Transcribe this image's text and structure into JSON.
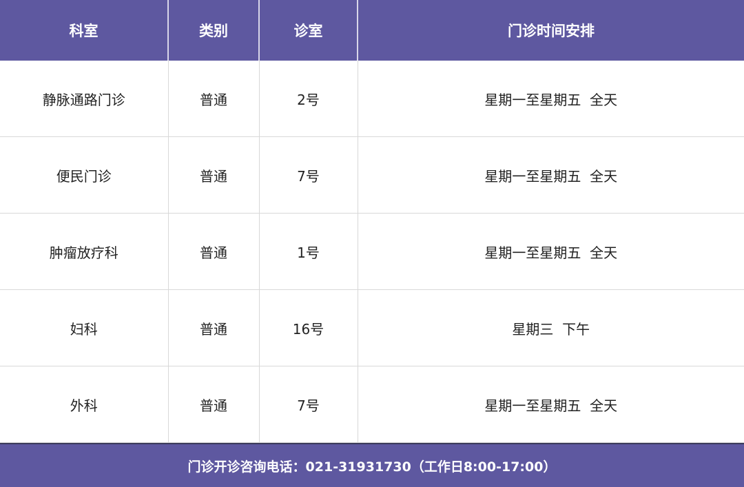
{
  "colors": {
    "header_bg": "#5e58a0",
    "header_text": "#ffffff"
  },
  "table": {
    "headers": [
      "科室",
      "类别",
      "诊室",
      "门诊时间安排"
    ],
    "rows": [
      [
        "静脉通路门诊",
        "普通",
        "2号",
        "星期一至星期五  全天"
      ],
      [
        "便民门诊",
        "普通",
        "7号",
        "星期一至星期五  全天"
      ],
      [
        "肿瘤放疗科",
        "普通",
        "1号",
        "星期一至星期五  全天"
      ],
      [
        "妇科",
        "普通",
        "16号",
        "星期三  下午"
      ],
      [
        "外科",
        "普通",
        "7号",
        "星期一至星期五  全天"
      ]
    ]
  },
  "footer": {
    "text": "门诊开诊咨询电话：021-31931730（工作日8:00-17:00）"
  }
}
